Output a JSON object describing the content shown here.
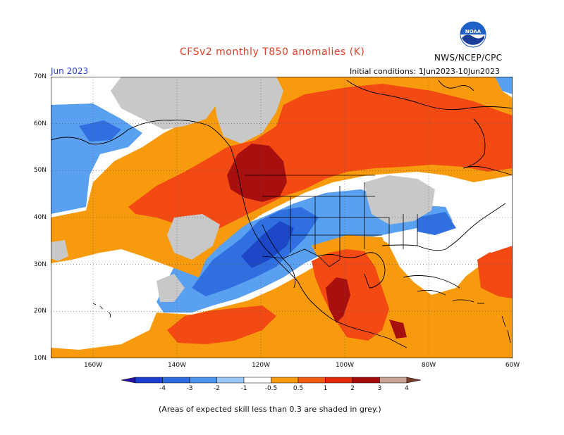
{
  "header": {
    "title": "CFSv2 monthly T850 anomalies (K)",
    "month": "Jun 2023",
    "initial_conditions": "Initial conditions: 1Jun2023-10Jun2023",
    "agency": "NWS/NCEP/CPC",
    "logo_text": "NOAA"
  },
  "axes": {
    "lat_labels": [
      "70N",
      "60N",
      "50N",
      "40N",
      "30N",
      "20N",
      "10N"
    ],
    "lon_labels": [
      "160W",
      "140W",
      "120W",
      "100W",
      "80W",
      "60W"
    ]
  },
  "colorbar": {
    "labels": [
      "-4",
      "-3",
      "-2",
      "-1",
      "-0.5",
      "0.5",
      "1",
      "2",
      "3",
      "4"
    ],
    "colors": [
      "#2a0fa8",
      "#1c3fd0",
      "#2a6be0",
      "#4a94ee",
      "#9cc8f7",
      "#ffffff",
      "#f79a0d",
      "#f25a12",
      "#e52a0a",
      "#a50b0b",
      "#c9a393",
      "#7a3f2a"
    ]
  },
  "legend_colors": {
    "no_skill": "#c8c8c8",
    "land_lines": "#000000"
  },
  "footnote": "(Areas of expected skill less than 0.3 are shaded in grey.)"
}
